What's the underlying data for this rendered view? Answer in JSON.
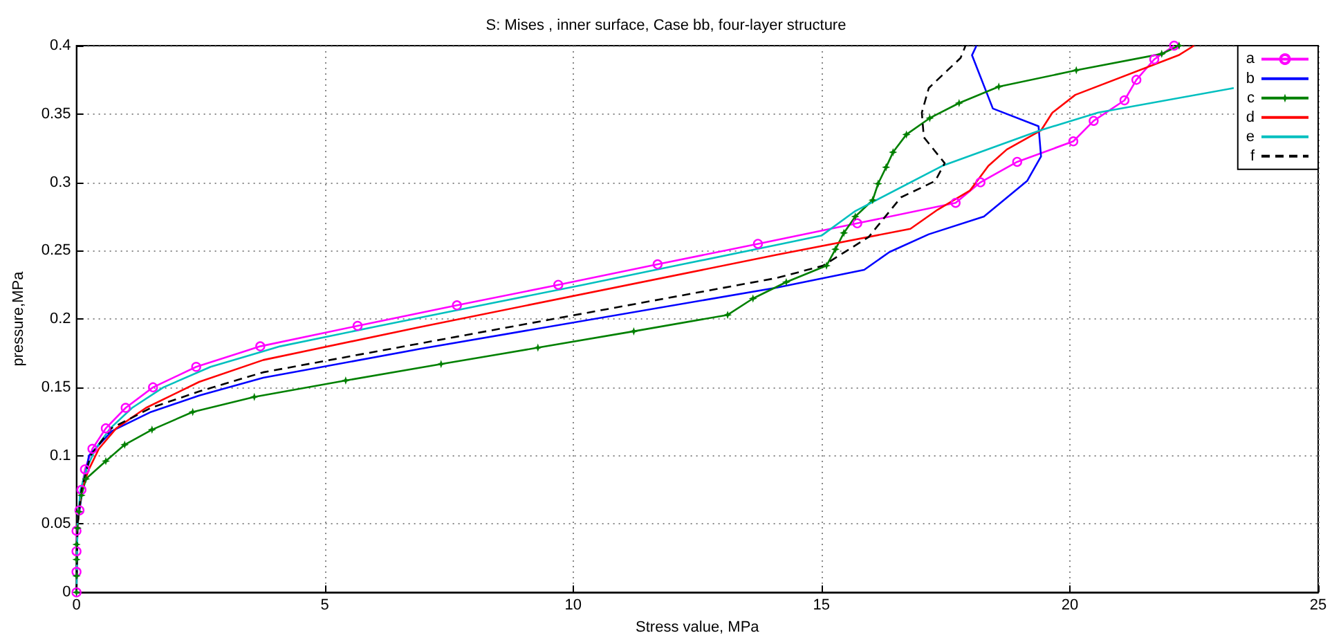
{
  "chart_data": {
    "type": "line",
    "title": "S: Mises , inner surface, Case bb, four-layer structure",
    "xlabel": "Stress value, MPa",
    "ylabel": "pressure,MPa",
    "xlim": [
      0,
      25
    ],
    "xticks": [
      0,
      5,
      10,
      15,
      20,
      25
    ],
    "ylim": [
      0,
      0.4
    ],
    "yticks": [
      0,
      0.05,
      0.1,
      0.15,
      0.2,
      0.25,
      0.3,
      0.35,
      0.4
    ],
    "grid": true,
    "legend": "top right",
    "series": [
      {
        "name": "a",
        "color": "#ff00ff",
        "marker": "circle",
        "line_style": "solid",
        "x": [
          0,
          0,
          0,
          0,
          0.06,
          0.1,
          0.17,
          0.32,
          0.59,
          0.99,
          1.54,
          2.41,
          3.7,
          5.66,
          7.66,
          9.7,
          11.7,
          13.72,
          15.72,
          17.7,
          18.2,
          18.94,
          20.07,
          20.48,
          21.1,
          21.34,
          21.7,
          22.1
        ],
        "values": [
          0,
          0.015,
          0.03,
          0.045,
          0.06,
          0.075,
          0.09,
          0.105,
          0.12,
          0.135,
          0.15,
          0.165,
          0.18,
          0.195,
          0.21,
          0.225,
          0.24,
          0.255,
          0.27,
          0.285,
          0.3,
          0.315,
          0.33,
          0.345,
          0.36,
          0.375,
          0.39,
          0.4
        ]
      },
      {
        "name": "b",
        "color": "#0000ff",
        "marker": "none",
        "line_style": "solid",
        "x": [
          0,
          0.02,
          0.12,
          0.25,
          0.71,
          1.5,
          2.47,
          3.76,
          6.9,
          14.1,
          15.86,
          16.37,
          17.16,
          18.27,
          19.14,
          19.42,
          19.37,
          18.45,
          18.03,
          18.12
        ],
        "values": [
          0,
          0.05,
          0.075,
          0.1,
          0.118,
          0.132,
          0.144,
          0.157,
          0.178,
          0.223,
          0.236,
          0.249,
          0.262,
          0.275,
          0.301,
          0.319,
          0.341,
          0.354,
          0.393,
          0.4
        ]
      },
      {
        "name": "c",
        "color": "#008000",
        "marker": "star",
        "line_style": "solid",
        "x": [
          0,
          0,
          0,
          0,
          0.02,
          0.05,
          0.1,
          0.19,
          0.59,
          0.97,
          1.52,
          2.34,
          3.58,
          5.42,
          7.34,
          9.29,
          11.22,
          13.11,
          13.62,
          14.29,
          15.1,
          15.28,
          15.45,
          15.68,
          16.03,
          16.14,
          16.3,
          16.44,
          16.71,
          17.18,
          17.77,
          18.57,
          20.13,
          21.85,
          22.2
        ],
        "values": [
          0,
          0.012,
          0.024,
          0.035,
          0.047,
          0.059,
          0.071,
          0.083,
          0.096,
          0.108,
          0.119,
          0.132,
          0.143,
          0.155,
          0.167,
          0.179,
          0.191,
          0.203,
          0.215,
          0.227,
          0.239,
          0.251,
          0.263,
          0.275,
          0.287,
          0.299,
          0.311,
          0.322,
          0.335,
          0.347,
          0.358,
          0.37,
          0.382,
          0.394,
          0.4
        ]
      },
      {
        "name": "d",
        "color": "#ff0000",
        "marker": "none",
        "line_style": "solid",
        "x": [
          0,
          0.02,
          0.1,
          0.25,
          0.45,
          0.8,
          1.4,
          2.47,
          3.76,
          6.9,
          14.1,
          16.79,
          17.34,
          17.99,
          18.36,
          18.73,
          19.42,
          19.65,
          20.11,
          22.19,
          22.5
        ],
        "values": [
          0,
          0.05,
          0.075,
          0.09,
          0.105,
          0.12,
          0.135,
          0.154,
          0.17,
          0.194,
          0.247,
          0.266,
          0.28,
          0.294,
          0.312,
          0.324,
          0.338,
          0.351,
          0.364,
          0.393,
          0.4
        ]
      },
      {
        "name": "e",
        "color": "#00bfbf",
        "marker": "none",
        "line_style": "solid",
        "x": [
          0,
          0.02,
          0.08,
          0.2,
          0.38,
          0.68,
          1.12,
          1.75,
          2.7,
          4.1,
          6.1,
          8.15,
          10.2,
          12.2,
          14.2,
          15.0,
          15.68,
          17.43,
          19.4,
          20.57,
          23.3
        ],
        "values": [
          0,
          0.05,
          0.075,
          0.09,
          0.105,
          0.12,
          0.135,
          0.15,
          0.165,
          0.18,
          0.195,
          0.21,
          0.225,
          0.24,
          0.255,
          0.261,
          0.279,
          0.312,
          0.338,
          0.351,
          0.369
        ]
      },
      {
        "name": "f",
        "color": "#000000",
        "marker": "none",
        "line_style": "dashed",
        "x": [
          0,
          0.02,
          0.1,
          0.28,
          0.7,
          1.5,
          2.47,
          3.76,
          6.9,
          14.1,
          15.03,
          15.95,
          16.6,
          17.29,
          17.48,
          17.06,
          17.02,
          17.16,
          17.8,
          17.9
        ],
        "values": [
          0,
          0.05,
          0.075,
          0.1,
          0.12,
          0.135,
          0.147,
          0.161,
          0.182,
          0.23,
          0.239,
          0.26,
          0.289,
          0.301,
          0.314,
          0.333,
          0.351,
          0.369,
          0.391,
          0.4
        ]
      }
    ]
  }
}
